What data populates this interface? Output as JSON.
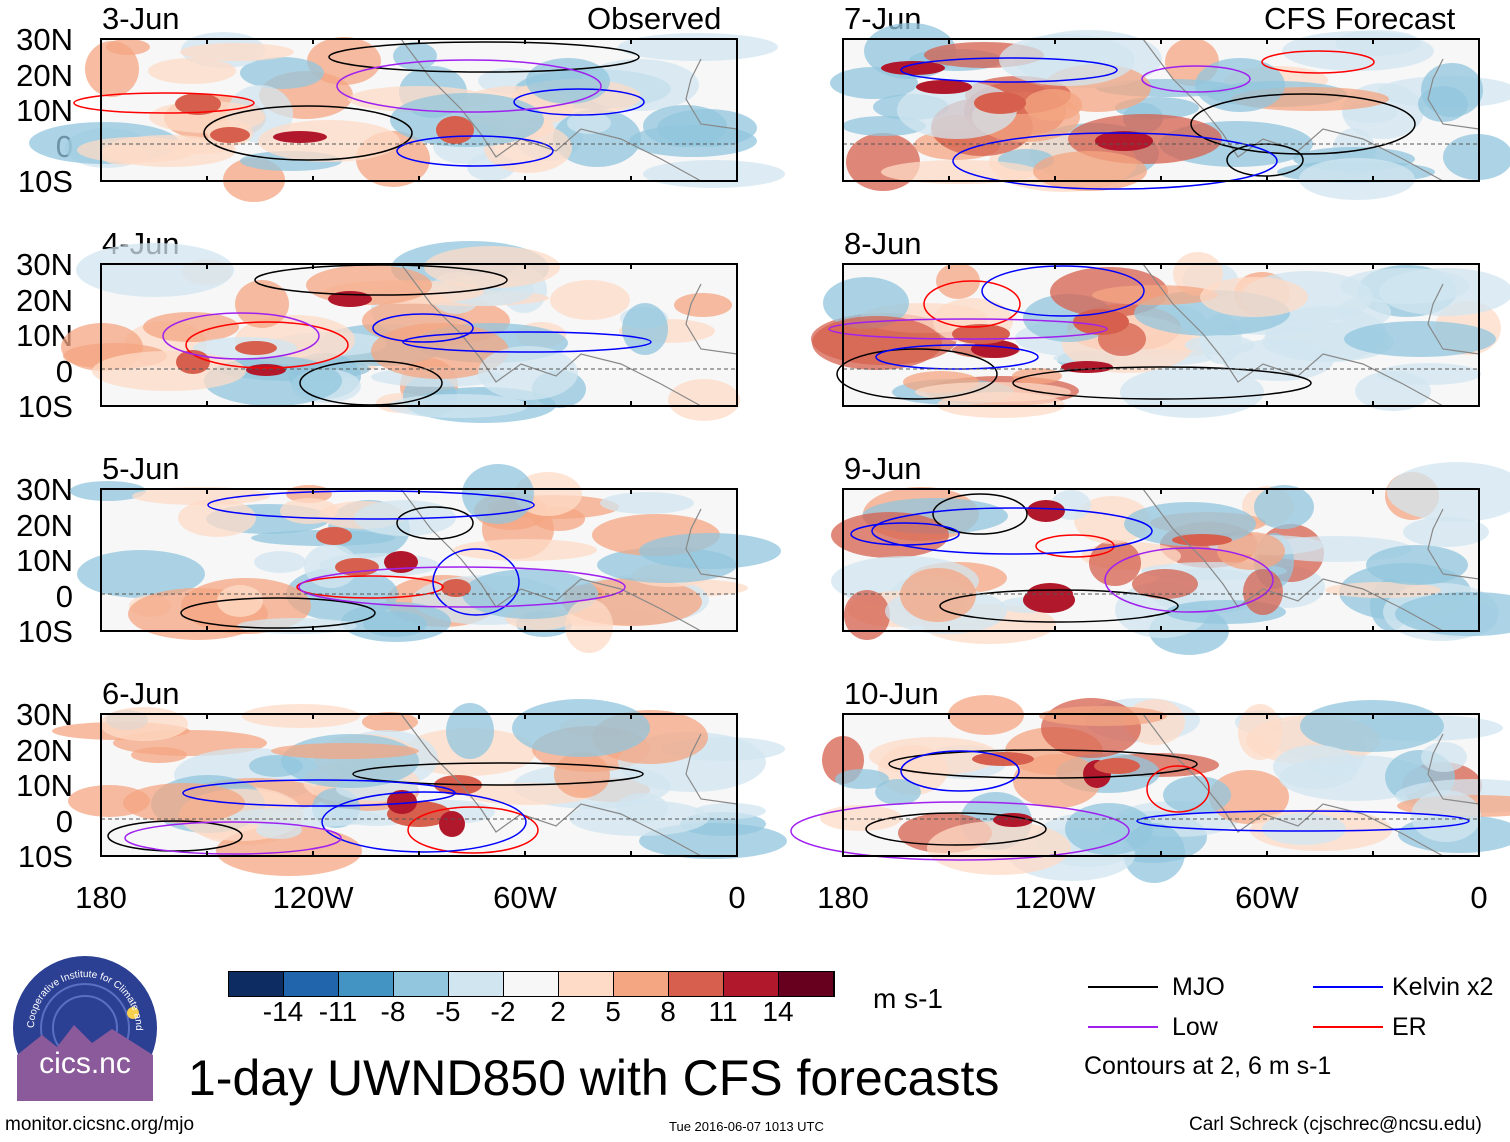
{
  "left_column": {
    "header": "Observed",
    "panels": [
      "3-Jun",
      "4-Jun",
      "5-Jun",
      "6-Jun"
    ]
  },
  "right_column": {
    "header": "CFS Forecast",
    "panels": [
      "7-Jun",
      "8-Jun",
      "9-Jun",
      "10-Jun"
    ]
  },
  "lat_labels": [
    "30N",
    "20N",
    "10N",
    "0",
    "10S"
  ],
  "lon_labels": [
    "180",
    "120W",
    "60W",
    "0"
  ],
  "colorbar": {
    "ticks": [
      "-14",
      "-11",
      "-8",
      "-5",
      "-2",
      "2",
      "5",
      "8",
      "11",
      "14"
    ],
    "colors": [
      "#0d2d62",
      "#2166ac",
      "#4393c3",
      "#92c5de",
      "#d1e5f0",
      "#f7f7f7",
      "#fddbc7",
      "#f4a582",
      "#d6604d",
      "#b2182b",
      "#67001f"
    ],
    "units": "m s-1"
  },
  "legend": {
    "items": [
      {
        "label": "MJO",
        "color": "#000000"
      },
      {
        "label": "Kelvin x2",
        "color": "#0000ff"
      },
      {
        "label": "Low",
        "color": "#a020f0"
      },
      {
        "label": "ER",
        "color": "#ff0000"
      }
    ],
    "note": "Contours at 2, 6 m s-1"
  },
  "title": "1-day UWND850 with CFS forecasts",
  "logo": {
    "text": "cics.nc",
    "arc_text": "Cooperative Institute for Climate and Satellites"
  },
  "footer": {
    "url": "monitor.cicsnc.org/mjo",
    "timestamp": "Tue 2016-06-07 1013 UTC",
    "author": "Carl Schreck (cjschrec@ncsu.edu)"
  }
}
